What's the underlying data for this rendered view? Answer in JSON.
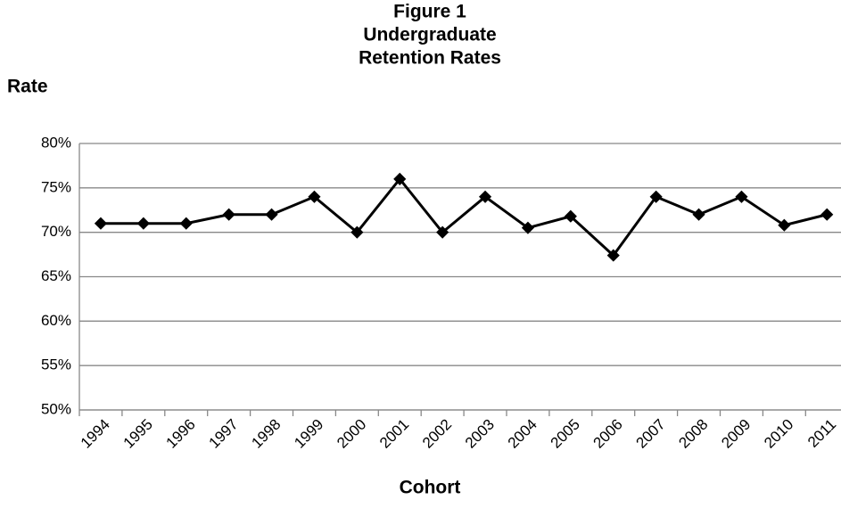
{
  "chart_data": {
    "type": "line",
    "title": [
      "Figure 1",
      "Undergraduate",
      "Retention Rates"
    ],
    "y_label": "Rate",
    "x_label": "Cohort",
    "categories": [
      "1994",
      "1995",
      "1996",
      "1997",
      "1998",
      "1999",
      "2000",
      "2001",
      "2002",
      "2003",
      "2004",
      "2005",
      "2006",
      "2007",
      "2008",
      "2009",
      "2010",
      "2011"
    ],
    "series": [
      {
        "name": "Retention Rate",
        "color": "#000000",
        "values": [
          71,
          71,
          71,
          72,
          72,
          74,
          70,
          76,
          70,
          74,
          70.5,
          71.8,
          67.4,
          74,
          72,
          74,
          70.8,
          72
        ]
      }
    ],
    "ylim": [
      50,
      80
    ],
    "yticks": [
      {
        "value": 50,
        "label": "50%"
      },
      {
        "value": 55,
        "label": "55%"
      },
      {
        "value": 60,
        "label": "60%"
      },
      {
        "value": 65,
        "label": "65%"
      },
      {
        "value": 70,
        "label": "70%"
      },
      {
        "value": 75,
        "label": "75%"
      },
      {
        "value": 80,
        "label": "80%"
      }
    ],
    "grid": true
  }
}
